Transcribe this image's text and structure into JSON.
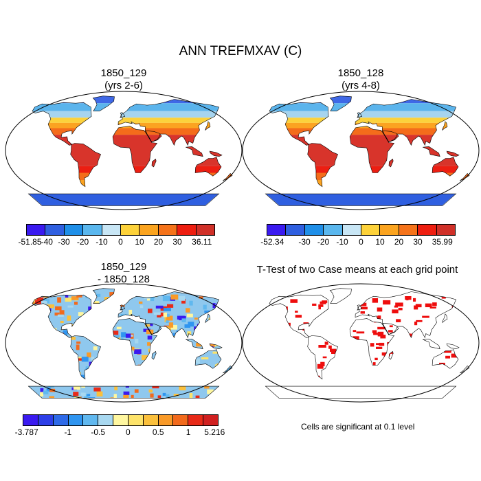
{
  "title": "ANN TREFMXAV (C)",
  "panels": [
    {
      "line1": "1850_129",
      "line2": "(yrs 2-6)"
    },
    {
      "line1": "1850_128",
      "line2": "(yrs 4-8)"
    },
    {
      "line1": "1850_129",
      "line2": "- 1850_128"
    },
    {
      "line1": "T-Test of two Case means at each grid point"
    }
  ],
  "colorbars": {
    "temp_colors": [
      "#3a1af0",
      "#2f5fe0",
      "#1f8fe8",
      "#5ab7ee",
      "#c8e6f5",
      "#fdd23a",
      "#fba41f",
      "#f5731a",
      "#ee1e10",
      "#d03028"
    ],
    "cb1_labels": [
      "-51.85",
      "-40",
      "-30",
      "-20",
      "-10",
      "0",
      "10",
      "20",
      "30",
      "36.11"
    ],
    "cb2_labels": [
      "-52.34",
      "-30",
      "-20",
      "-10",
      "0",
      "10",
      "20",
      "30",
      "35.99"
    ],
    "diff_colors": [
      "#3a1af0",
      "#2d3fe8",
      "#2e6ae8",
      "#2f95f0",
      "#60b8ef",
      "#a8d8f0",
      "#fff7a0",
      "#fde36a",
      "#fbc03c",
      "#f99a28",
      "#f26a1c",
      "#e82a18",
      "#d02020"
    ],
    "cb3_labels": [
      "-3.787",
      "-1",
      "-0.5",
      "0",
      "0.5",
      "1",
      "5.216"
    ]
  },
  "ttest_note": "Cells are significant at 0.1 level"
}
